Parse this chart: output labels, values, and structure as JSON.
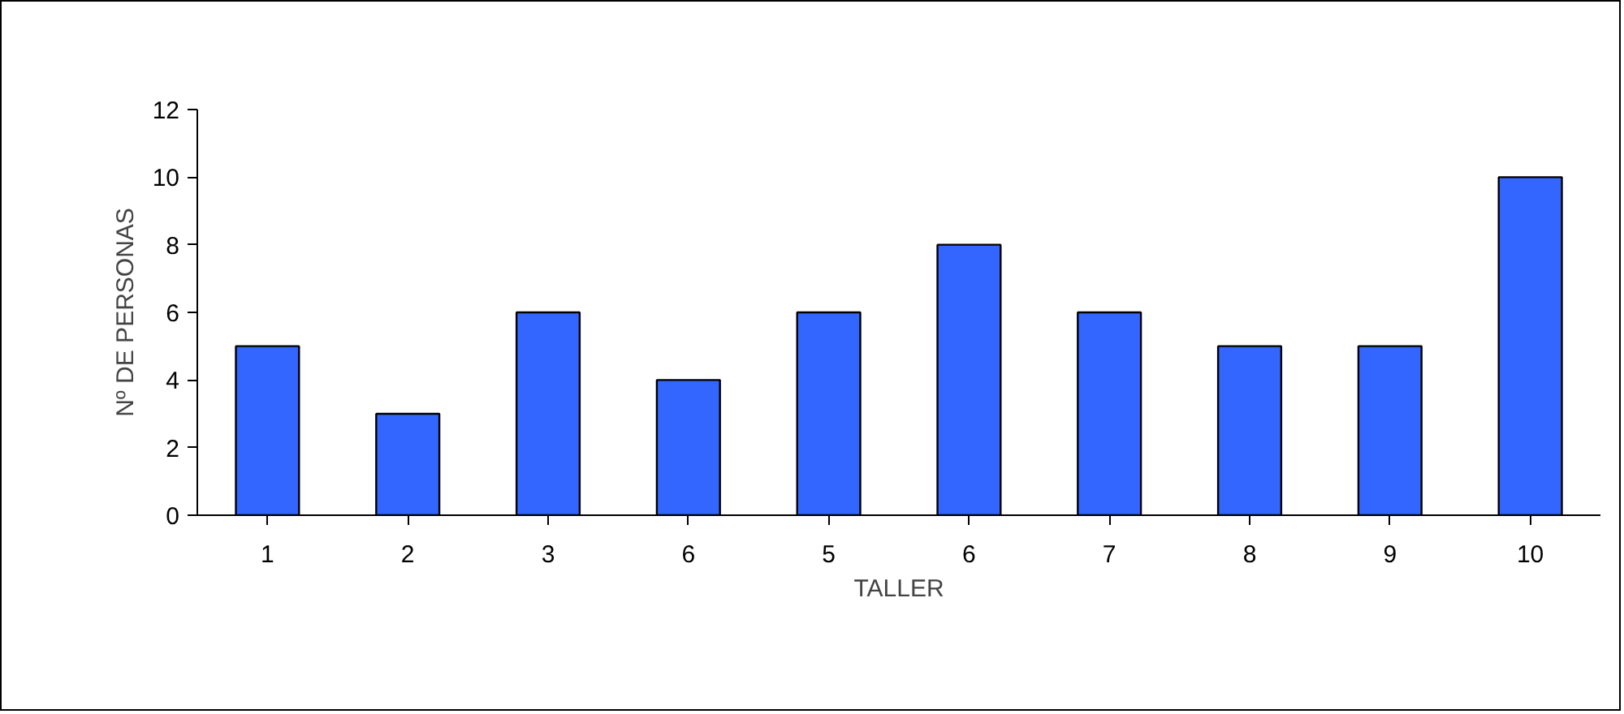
{
  "chart_data": {
    "type": "bar",
    "xlabel": "TALLER",
    "ylabel": "Nº DE PERSONAS",
    "categories": [
      "1",
      "2",
      "3",
      "6",
      "5",
      "6",
      "7",
      "8",
      "9",
      "10"
    ],
    "values": [
      5,
      3,
      6,
      4,
      6,
      8,
      6,
      5,
      5,
      10
    ],
    "color": "#3366ff",
    "ylim": [
      0,
      12
    ],
    "yticks": [
      0,
      2,
      4,
      6,
      8,
      10,
      12
    ]
  }
}
